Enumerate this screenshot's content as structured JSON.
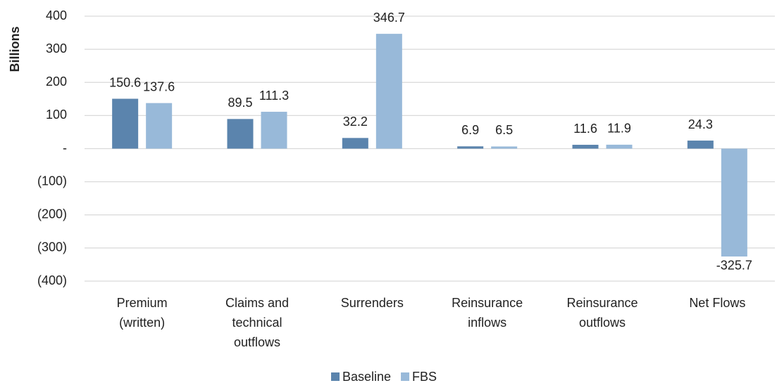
{
  "chart_data": {
    "type": "bar",
    "y_label": "Billions",
    "categories": [
      [
        "Premium",
        "(written)"
      ],
      [
        "Claims and",
        "technical",
        "outflows"
      ],
      [
        "Surrenders"
      ],
      [
        "Reinsurance",
        "inflows"
      ],
      [
        "Reinsurance",
        "outflows"
      ],
      [
        "Net Flows"
      ]
    ],
    "series": [
      {
        "name": "Baseline",
        "color": "#5b84ad",
        "values": [
          150.6,
          89.5,
          32.2,
          6.9,
          11.6,
          24.3
        ]
      },
      {
        "name": "FBS",
        "color": "#98b9d9",
        "values": [
          137.6,
          111.3,
          346.7,
          6.5,
          11.9,
          -325.7
        ]
      }
    ],
    "ylim": [
      -400,
      400
    ],
    "yticks": [
      400,
      300,
      200,
      100,
      {
        "value": 0,
        "label": "-"
      },
      {
        "value": -100,
        "label": "(100)"
      },
      {
        "value": -200,
        "label": "(200)"
      },
      {
        "value": -300,
        "label": "(300)"
      },
      {
        "value": -400,
        "label": "(400)"
      }
    ],
    "grid": true,
    "legend": "bottom"
  }
}
